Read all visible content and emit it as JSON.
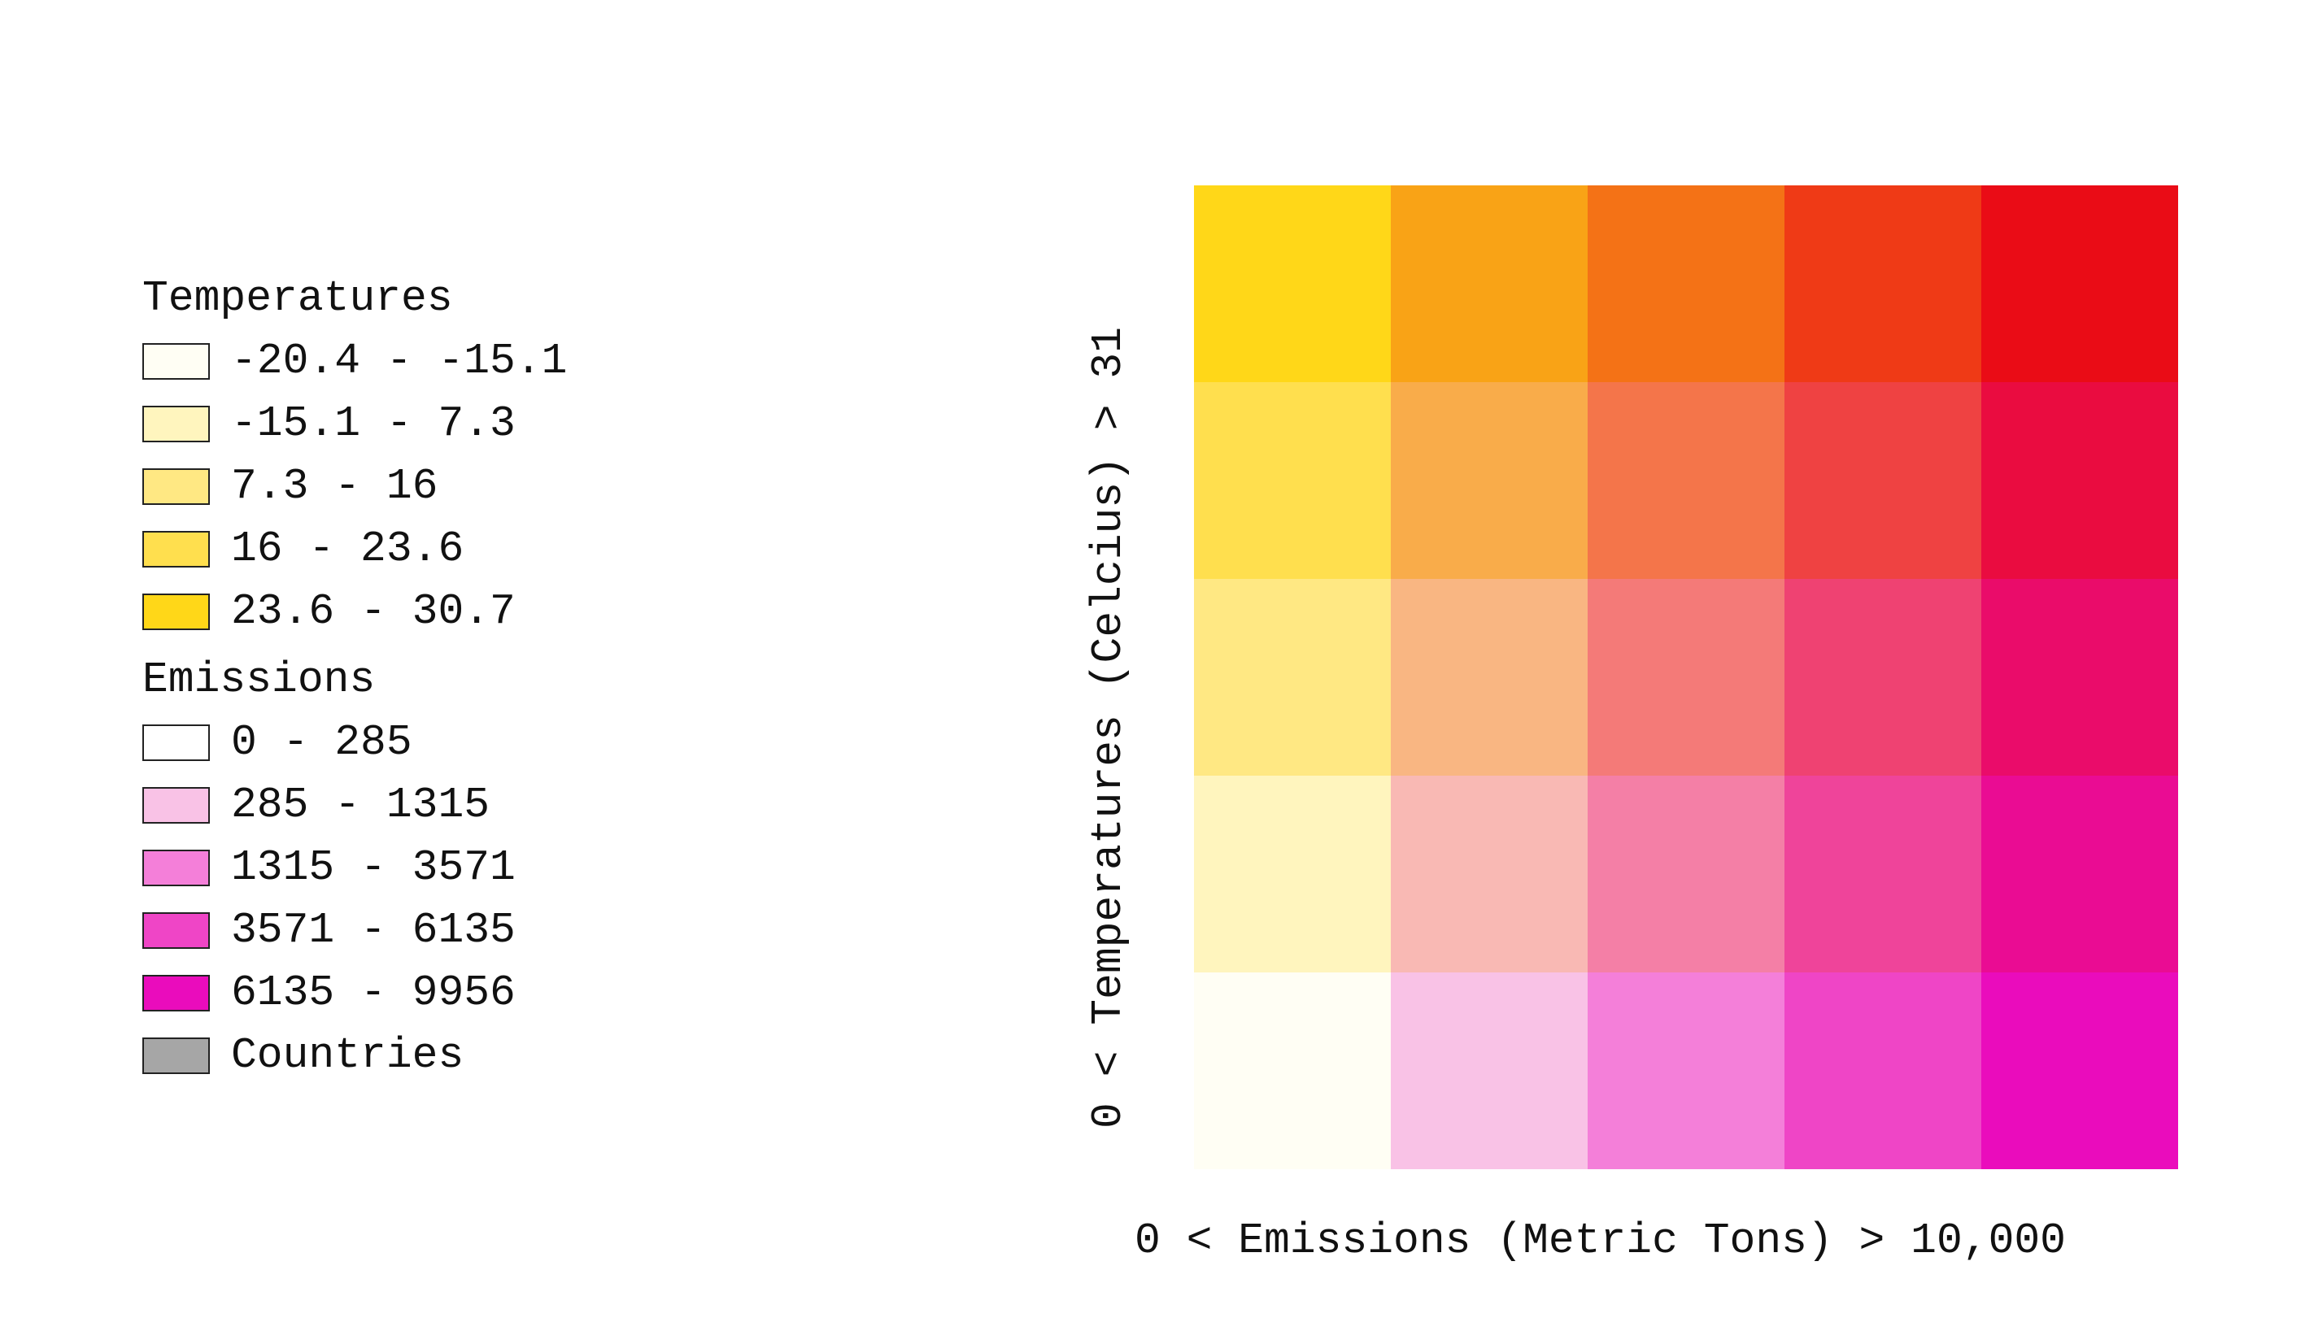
{
  "chart_data": {
    "type": "heatmap",
    "xlabel": "0 < Emissions (Metric Tons) > 10,000",
    "ylabel": "0 < Temperatures (Celcius) > 31",
    "x_bins": [
      "0 - 285",
      "285 - 1315",
      "1315 - 3571",
      "3571 - 6135",
      "6135 - 9956"
    ],
    "y_bins": [
      "-20.4 - -15.1",
      "-15.1 - 7.3",
      "7.3 - 16",
      "16 - 23.6",
      "23.6 - 30.7"
    ],
    "grid_colors_top_to_bottom": [
      [
        "#FFD718",
        "#F9A316",
        "#F47216",
        "#EF3A16",
        "#EA0C16"
      ],
      [
        "#FFDF4E",
        "#F9AC4A",
        "#F4754A",
        "#EF4242",
        "#EA0C40"
      ],
      [
        "#FFE883",
        "#F9B682",
        "#F47A78",
        "#EF4272",
        "#EA0C6A"
      ],
      [
        "#FFF5BE",
        "#F9B9B4",
        "#F47FA6",
        "#EF449A",
        "#EA0C93"
      ],
      [
        "#FFFEF4",
        "#F9C2E6",
        "#F47FD9",
        "#EF45C6",
        "#EA0CBC"
      ]
    ],
    "grid": false,
    "legend_placement": "left"
  },
  "legend": {
    "temperatures_title": "Temperatures",
    "temperatures": [
      {
        "label": "-20.4 - -15.1",
        "color": "#FFFEF4"
      },
      {
        "label": "-15.1 - 7.3",
        "color": "#FFF5BE"
      },
      {
        "label": "7.3 - 16",
        "color": "#FFE883"
      },
      {
        "label": "16 - 23.6",
        "color": "#FFDF4E"
      },
      {
        "label": "23.6 - 30.7",
        "color": "#FFD718"
      }
    ],
    "emissions_title": "Emissions",
    "emissions": [
      {
        "label": "0 - 285",
        "color": "#FFFFFF"
      },
      {
        "label": "285 - 1315",
        "color": "#F9C2E6"
      },
      {
        "label": "1315 - 3571",
        "color": "#F47FD9"
      },
      {
        "label": "3571 - 6135",
        "color": "#EF45C6"
      },
      {
        "label": "6135 - 9956",
        "color": "#EA0CBC"
      }
    ],
    "countries_label": "Countries",
    "countries_color": "#A6A6A6"
  }
}
